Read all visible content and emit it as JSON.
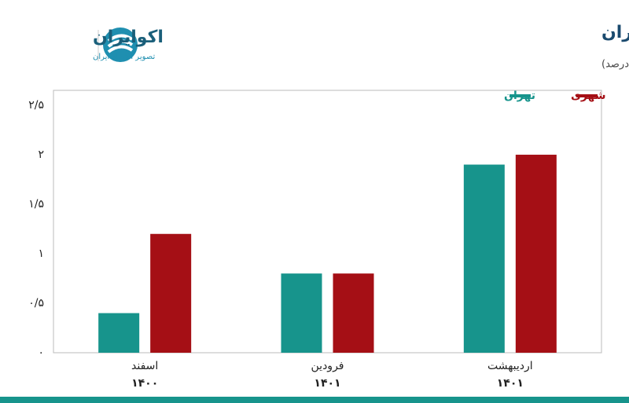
{
  "brand": {
    "name": "اکوایران",
    "tagline": "تصویر اقتصاد ایران"
  },
  "chart_data": {
    "type": "bar",
    "title": "روند تورم ماهانه اجاره درنقاط شهری و تهران",
    "subtitle": "(واحد: درصد)",
    "categories": [
      [
        "اسفند",
        "۱۴۰۰"
      ],
      [
        "فرودین",
        "۱۴۰۱"
      ],
      [
        "اردیبهشت",
        "۱۴۰۱"
      ]
    ],
    "series": [
      {
        "name": "شهری",
        "color": "#a50f15",
        "values": [
          1.2,
          0.8,
          2.0
        ]
      },
      {
        "name": "تهران",
        "color": "#17948c",
        "values": [
          0.4,
          0.8,
          1.9
        ]
      }
    ],
    "ylim": [
      0,
      2.65
    ],
    "yticks": [
      {
        "value": 0,
        "label": "۰"
      },
      {
        "value": 0.5,
        "label": "۰/۵"
      },
      {
        "value": 1,
        "label": "۱"
      },
      {
        "value": 1.5,
        "label": "۱/۵"
      },
      {
        "value": 2,
        "label": "۲"
      },
      {
        "value": 2.5,
        "label": "۲/۵"
      }
    ],
    "legend": "top-right",
    "grid": false
  }
}
